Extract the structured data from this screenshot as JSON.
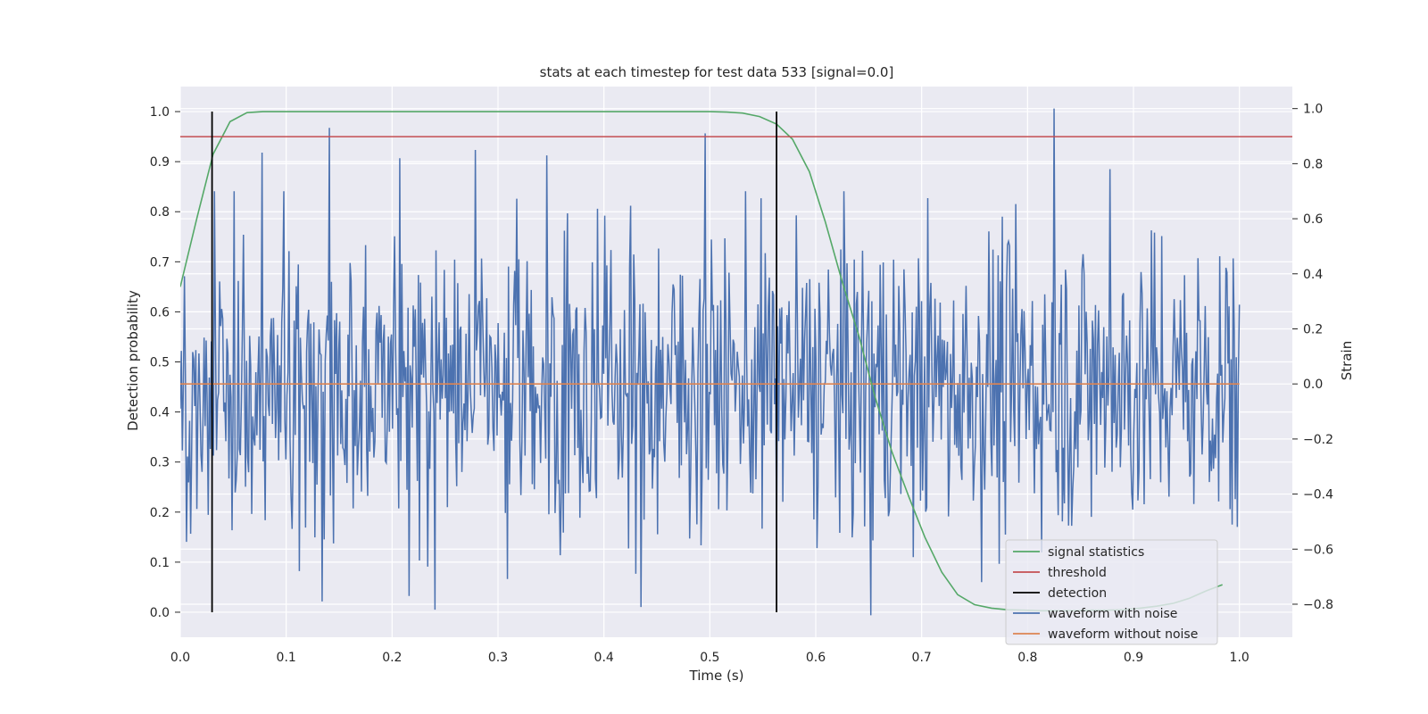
{
  "chart_data": {
    "type": "line",
    "title": "stats at each timestep for test data 533 [signal=0.0]",
    "xlabel": "Time (s)",
    "ylabel_left": "Detection probability",
    "ylabel_right": "Strain",
    "xlim": [
      0.0,
      1.05
    ],
    "ylim_left": [
      -0.05,
      1.05
    ],
    "ylim_right": [
      -0.92,
      1.08
    ],
    "x_ticks": [
      0.0,
      0.1,
      0.2,
      0.3,
      0.4,
      0.5,
      0.6,
      0.7,
      0.8,
      0.9,
      1.0
    ],
    "x_tick_labels": [
      "0.0",
      "0.1",
      "0.2",
      "0.3",
      "0.4",
      "0.5",
      "0.6",
      "0.7",
      "0.8",
      "0.9",
      "1.0"
    ],
    "left_ticks": [
      0.0,
      0.1,
      0.2,
      0.3,
      0.4,
      0.5,
      0.6,
      0.7,
      0.8,
      0.9,
      1.0
    ],
    "left_tick_labels": [
      "0.0",
      "0.1",
      "0.2",
      "0.3",
      "0.4",
      "0.5",
      "0.6",
      "0.7",
      "0.8",
      "0.9",
      "1.0"
    ],
    "right_ticks": [
      -0.8,
      -0.6,
      -0.4,
      -0.2,
      0.0,
      0.2,
      0.4,
      0.6,
      0.8,
      1.0
    ],
    "right_tick_labels": [
      "−0.8",
      "−0.6",
      "−0.4",
      "−0.2",
      "0.0",
      "0.2",
      "0.4",
      "0.6",
      "0.8",
      "1.0"
    ],
    "grid": true,
    "legend_position": "bottom-right",
    "threshold": 0.95,
    "detections": [
      0.03,
      0.563
    ],
    "signal_statistics": {
      "name": "signal statistics",
      "color": "#55a868",
      "x": [
        0.0,
        0.016,
        0.031,
        0.047,
        0.063,
        0.078,
        0.094,
        0.5,
        0.516,
        0.531,
        0.547,
        0.563,
        0.578,
        0.594,
        0.609,
        0.625,
        0.641,
        0.656,
        0.672,
        0.688,
        0.703,
        0.719,
        0.734,
        0.75,
        0.766,
        0.781,
        0.797,
        0.813,
        0.828,
        0.844,
        0.859,
        0.875,
        0.891,
        0.906,
        0.922,
        0.938,
        0.953,
        0.969,
        0.984
      ],
      "y": [
        0.65,
        0.79,
        0.915,
        0.98,
        0.998,
        1.0,
        1.0,
        1.0,
        0.999,
        0.997,
        0.99,
        0.975,
        0.945,
        0.88,
        0.78,
        0.66,
        0.55,
        0.43,
        0.32,
        0.23,
        0.15,
        0.08,
        0.035,
        0.015,
        0.008,
        0.005,
        0.004,
        0.003,
        0.003,
        0.003,
        0.004,
        0.004,
        0.005,
        0.008,
        0.012,
        0.018,
        0.028,
        0.043,
        0.055
      ]
    },
    "noise_waveform": {
      "name": "waveform with noise",
      "color": "#4c72b0",
      "x_start": 0.0,
      "x_end": 1.0,
      "spikes": [
        {
          "x": 0.032,
          "y": 0.7
        },
        {
          "x": 0.077,
          "y": 0.84
        },
        {
          "x": 0.141,
          "y": 0.93
        },
        {
          "x": 0.207,
          "y": 0.82
        },
        {
          "x": 0.279,
          "y": 0.85
        },
        {
          "x": 0.346,
          "y": 0.83
        },
        {
          "x": 0.496,
          "y": 0.91
        },
        {
          "x": 0.825,
          "y": 1.0
        },
        {
          "x": 0.878,
          "y": 0.78
        },
        {
          "x": 0.652,
          "y": -0.84
        },
        {
          "x": 0.24,
          "y": -0.82
        },
        {
          "x": 0.134,
          "y": -0.79
        },
        {
          "x": 0.435,
          "y": -0.81
        },
        {
          "x": 0.216,
          "y": -0.77
        }
      ]
    },
    "clean_waveform": {
      "name": "waveform without noise",
      "color": "#dd8452",
      "x": [
        0.0,
        1.0
      ],
      "y": [
        0.0,
        0.0
      ]
    },
    "legend": [
      {
        "label": "signal statistics",
        "color": "#55a868"
      },
      {
        "label": "threshold",
        "color": "#c44e52"
      },
      {
        "label": "detection",
        "color": "#000000"
      },
      {
        "label": "waveform with noise",
        "color": "#4c72b0"
      },
      {
        "label": "waveform without noise",
        "color": "#dd8452"
      }
    ],
    "colors": {
      "threshold": "#c44e52",
      "detection": "#000000",
      "plot_background": "#eaeaf2",
      "grid": "#ffffff"
    }
  }
}
